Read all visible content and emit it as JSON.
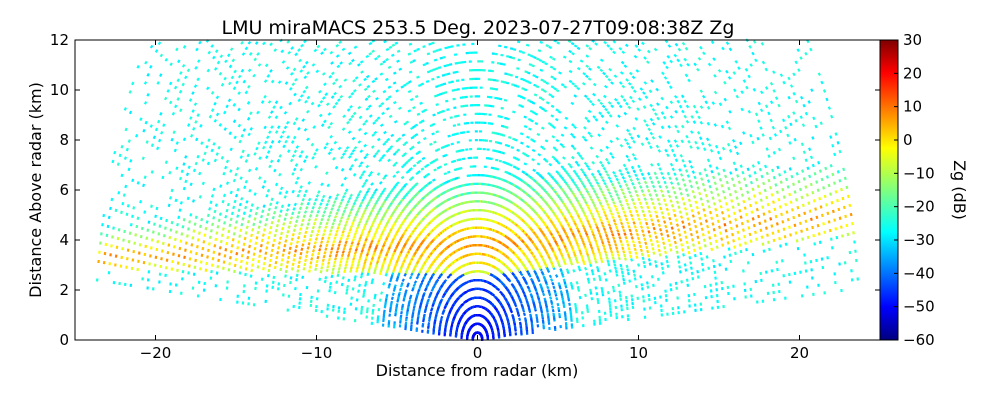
{
  "chart_data": {
    "type": "heatmap",
    "title": "LMU miraMACS 253.5 Deg. 2023-07-27T09:08:38Z  Zg",
    "xlabel": "Distance from radar (km)",
    "ylabel": "Distance Above radar  (km)",
    "xlim": [
      -25,
      25
    ],
    "ylim": [
      0,
      12
    ],
    "x_ticks": [
      -20,
      -10,
      0,
      10,
      20
    ],
    "x_tick_labels": [
      "−20",
      "−10",
      "0",
      "10",
      "20"
    ],
    "y_ticks": [
      0,
      2,
      4,
      6,
      8,
      10,
      12
    ],
    "y_tick_labels": [
      "0",
      "2",
      "4",
      "6",
      "8",
      "10",
      "12"
    ],
    "colorbar": {
      "label": "Zg (dB)",
      "range": [
        -60,
        30
      ],
      "ticks": [
        -60,
        -50,
        -40,
        -30,
        -20,
        -10,
        0,
        10,
        20,
        30
      ],
      "tick_labels": [
        "−60",
        "−50",
        "−40",
        "−30",
        "−20",
        "−10",
        "0",
        "10",
        "20",
        "30"
      ],
      "colormap": "jet"
    },
    "scan": {
      "azimuth_deg": 253.5,
      "max_range_km": 24,
      "cloud_layer": {
        "left": {
          "x": -23.5,
          "base_km": 2.8,
          "top_km": 4.5
        },
        "mid": {
          "x": 0,
          "base_km": 2.6,
          "top_km": 6.6
        },
        "right": {
          "x": 23.5,
          "base_km": 4.2,
          "top_km": 7.0
        },
        "core_zg_db": 5,
        "edge_zg_db": -25
      },
      "noise_zg_db": -25,
      "near_radar_zg_db": -50
    }
  }
}
